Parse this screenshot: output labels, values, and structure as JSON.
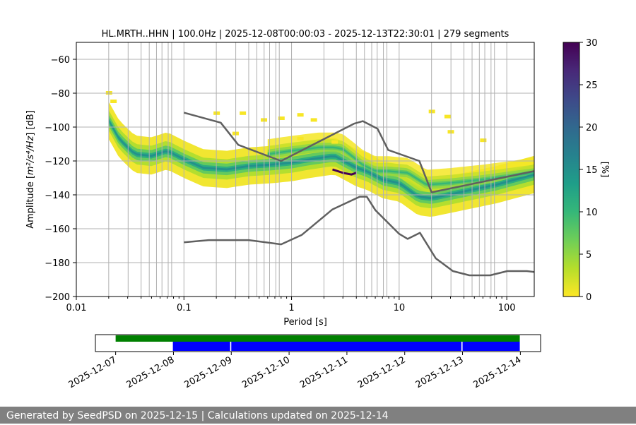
{
  "chart_data": {
    "type": "heatmap",
    "title": "HL.MRTH..HHN | 100.0Hz | 2025-12-08T00:00:03 - 2025-12-13T22:30:01 | 279 segments",
    "xlabel": "Period [s]",
    "ylabel_prefix": "Amplitude [",
    "ylabel_units": "m²/s⁴/Hz",
    "ylabel_suffix": "] [dB]",
    "xscale": "log",
    "xlim": [
      0.01,
      180
    ],
    "ylim": [
      -200,
      -50
    ],
    "xticks": [
      {
        "value": 0.01,
        "label": "0.01"
      },
      {
        "value": 0.1,
        "label": "0.1"
      },
      {
        "value": 1,
        "label": "1"
      },
      {
        "value": 10,
        "label": "10"
      },
      {
        "value": 100,
        "label": "100"
      }
    ],
    "yticks": [
      {
        "value": -60,
        "label": "−60"
      },
      {
        "value": -80,
        "label": "−80"
      },
      {
        "value": -100,
        "label": "−100"
      },
      {
        "value": -120,
        "label": "−120"
      },
      {
        "value": -140,
        "label": "−140"
      },
      {
        "value": -160,
        "label": "−160"
      },
      {
        "value": -180,
        "label": "−180"
      },
      {
        "value": -200,
        "label": "−200"
      }
    ],
    "grid_periods": [
      0.02,
      0.0303,
      0.04,
      0.0476,
      0.0556,
      0.0625,
      0.0714,
      0.0769,
      0.1,
      0.2,
      0.303,
      0.4,
      0.476,
      0.556,
      0.625,
      0.714,
      0.769,
      1,
      2,
      3.03,
      4,
      4.76,
      5.56,
      6.25,
      7.14,
      7.69,
      10,
      20,
      30.3,
      40,
      47.6,
      55.6,
      62.5,
      71.4,
      76.9,
      100
    ],
    "grid_y": [
      -60,
      -80,
      -100,
      -120,
      -140,
      -160,
      -180
    ],
    "psd_modes": [
      {
        "name": "lower",
        "points": [
          [
            0.02,
            -96
          ],
          [
            0.025,
            -107
          ],
          [
            0.035,
            -116
          ],
          [
            0.05,
            -117
          ],
          [
            0.07,
            -114
          ],
          [
            0.1,
            -119
          ],
          [
            0.15,
            -124
          ],
          [
            0.25,
            -125
          ],
          [
            0.4,
            -123
          ],
          [
            0.7,
            -122
          ],
          [
            1.0,
            -121
          ],
          [
            1.5,
            -119
          ],
          [
            2.5,
            -117
          ],
          [
            4.0,
            -124
          ],
          [
            5.0,
            -126
          ],
          [
            7.0,
            -131
          ],
          [
            10.0,
            -133
          ],
          [
            15.0,
            -141
          ],
          [
            20.0,
            -142
          ],
          [
            40.0,
            -138
          ],
          [
            80.0,
            -134
          ],
          [
            180.0,
            -128
          ]
        ]
      },
      {
        "name": "upper",
        "points": [
          [
            0.6,
            -116
          ],
          [
            1.0,
            -114
          ],
          [
            1.8,
            -112
          ],
          [
            2.5,
            -112
          ],
          [
            3.0,
            -113
          ],
          [
            3.8,
            -118
          ],
          [
            4.5,
            -122
          ],
          [
            6.0,
            -126
          ],
          [
            8.0,
            -126
          ],
          [
            12.0,
            -127
          ],
          [
            18.0,
            -134
          ],
          [
            30.0,
            -133
          ],
          [
            60.0,
            -131
          ],
          [
            180.0,
            -127
          ]
        ]
      }
    ],
    "dark_line": {
      "points": [
        [
          2.4,
          -125
        ],
        [
          3.0,
          -127
        ],
        [
          3.6,
          -128
        ],
        [
          4.0,
          -127
        ]
      ]
    },
    "scatter_fringe": {
      "points": [
        [
          0.02,
          -80
        ],
        [
          0.022,
          -85
        ],
        [
          0.2,
          -92
        ],
        [
          0.35,
          -92
        ],
        [
          0.55,
          -96
        ],
        [
          0.8,
          -95
        ],
        [
          1.2,
          -93
        ],
        [
          1.6,
          -96
        ],
        [
          20.0,
          -91
        ],
        [
          28.0,
          -94
        ],
        [
          0.3,
          -104
        ],
        [
          1.2,
          -107
        ],
        [
          60.0,
          -108
        ],
        [
          2.5,
          -109
        ],
        [
          30.0,
          -103
        ]
      ]
    },
    "nhnm": {
      "name": "NHNM",
      "points": [
        [
          0.1,
          -91.5
        ],
        [
          0.22,
          -97.4
        ],
        [
          0.32,
          -110.5
        ],
        [
          0.8,
          -120.0
        ],
        [
          3.8,
          -98.0
        ],
        [
          4.6,
          -96.5
        ],
        [
          6.3,
          -101.0
        ],
        [
          7.9,
          -113.5
        ],
        [
          15.4,
          -120.0
        ],
        [
          20.0,
          -138.5
        ],
        [
          180.0,
          -126.0
        ]
      ]
    },
    "nlnm": {
      "name": "NLNM",
      "points": [
        [
          0.1,
          -168.0
        ],
        [
          0.17,
          -166.7
        ],
        [
          0.4,
          -166.7
        ],
        [
          0.8,
          -169.2
        ],
        [
          1.24,
          -163.7
        ],
        [
          2.4,
          -148.6
        ],
        [
          4.3,
          -141.1
        ],
        [
          5.0,
          -141.1
        ],
        [
          6.0,
          -149.0
        ],
        [
          10.0,
          -163.0
        ],
        [
          12.0,
          -166.0
        ],
        [
          15.6,
          -162.4
        ],
        [
          21.9,
          -177.5
        ],
        [
          31.6,
          -185.0
        ],
        [
          45.0,
          -187.5
        ],
        [
          70.0,
          -187.5
        ],
        [
          101.0,
          -185.0
        ],
        [
          154.0,
          -185.0
        ],
        [
          180.0,
          -185.5
        ]
      ]
    },
    "colorbar": {
      "label": "[%]",
      "min": 0,
      "max": 30,
      "ticks": [
        {
          "value": 0,
          "label": "0"
        },
        {
          "value": 5,
          "label": "5"
        },
        {
          "value": 10,
          "label": "10"
        },
        {
          "value": 15,
          "label": "15"
        },
        {
          "value": 20,
          "label": "20"
        },
        {
          "value": 25,
          "label": "25"
        },
        {
          "value": 30,
          "label": "30"
        }
      ],
      "colormap": "viridis_r",
      "stops": [
        "#fde725",
        "#b5de2b",
        "#6ece58",
        "#35b779",
        "#1f9e89",
        "#26828e",
        "#31688e",
        "#3e4989",
        "#482878",
        "#440154"
      ]
    },
    "timeline": {
      "xlim_days": [
        -0.35,
        7.35
      ],
      "date_ticks": [
        {
          "day": 0,
          "label": "2025-12-07"
        },
        {
          "day": 1,
          "label": "2025-12-08"
        },
        {
          "day": 2,
          "label": "2025-12-09"
        },
        {
          "day": 3,
          "label": "2025-12-10"
        },
        {
          "day": 4,
          "label": "2025-12-11"
        },
        {
          "day": 5,
          "label": "2025-12-12"
        },
        {
          "day": 6,
          "label": "2025-12-13"
        },
        {
          "day": 7,
          "label": "2025-12-14"
        }
      ],
      "available": [
        [
          0.0,
          6.99
        ]
      ],
      "used": [
        [
          0.99,
          1.98
        ],
        [
          2.0,
          5.98
        ],
        [
          6.0,
          6.99
        ]
      ],
      "available_color": "#008000",
      "used_color": "#0000ff"
    }
  },
  "footer": {
    "text": "Generated by SeedPSD on 2025-12-15 | Calculations updated on 2025-12-14"
  }
}
